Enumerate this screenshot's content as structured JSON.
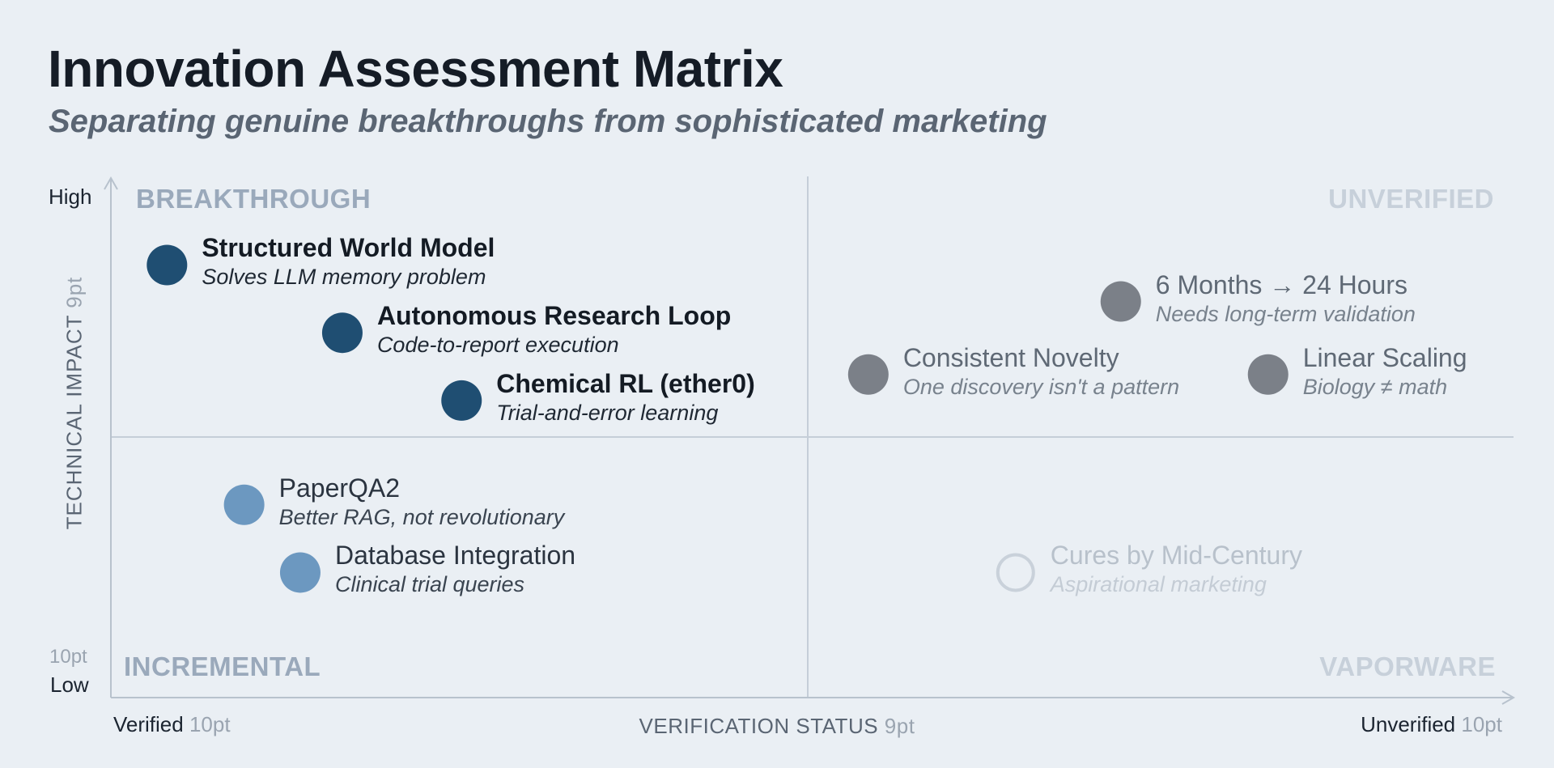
{
  "title": "Innovation Assessment Matrix",
  "subtitle": "Separating genuine breakthroughs from sophisticated marketing",
  "y_axis": {
    "title": "TECHNICAL IMPACT",
    "title_size": "9pt",
    "high_label": "High",
    "low_label": "Low",
    "low_size": "10pt"
  },
  "x_axis": {
    "title": "VERIFICATION STATUS",
    "title_size": "9pt",
    "left_label": "Verified",
    "left_size": "10pt",
    "right_label": "Unverified",
    "right_size": "10pt"
  },
  "quadrants": {
    "top_left": "BREAKTHROUGH",
    "top_right": "UNVERIFIED",
    "bottom_left": "INCREMENTAL",
    "bottom_right": "VAPORWARE"
  },
  "colors": {
    "dark_blue": "#1f4e72",
    "light_blue": "#6c98c0",
    "gray": "#7b8088",
    "outline": "#c9d1da",
    "grid": "#c5ced8"
  },
  "items": [
    {
      "name": "Structured World Model",
      "description": "Solves LLM memory problem",
      "verification": 0.08,
      "impact": 0.83,
      "style": "dark"
    },
    {
      "name": "Autonomous Research Loop",
      "description": "Code-to-report execution",
      "verification": 0.33,
      "impact": 0.7,
      "style": "dark"
    },
    {
      "name": "Chemical RL (ether0)",
      "description": "Trial-and-error learning",
      "verification": 0.5,
      "impact": 0.57,
      "style": "dark"
    },
    {
      "name": "6 Months → 24 Hours",
      "description": "Needs long-term validation",
      "verification": 1.44,
      "impact": 0.76,
      "style": "gray"
    },
    {
      "name": "Consistent Novelty",
      "description": "One discovery isn't a pattern",
      "verification": 1.08,
      "impact": 0.62,
      "style": "gray"
    },
    {
      "name": "Linear Scaling",
      "description": "Biology ≠ math",
      "verification": 1.65,
      "impact": 0.62,
      "style": "gray"
    },
    {
      "name": "PaperQA2",
      "description": "Better RAG, not revolutionary",
      "verification": 0.19,
      "impact": 0.37,
      "style": "light"
    },
    {
      "name": "Database Integration",
      "description": "Clinical trial queries",
      "verification": 0.27,
      "impact": 0.24,
      "style": "light"
    },
    {
      "name": "Cures by Mid-Century",
      "description": "Aspirational marketing",
      "verification": 1.29,
      "impact": 0.24,
      "style": "outline"
    }
  ]
}
